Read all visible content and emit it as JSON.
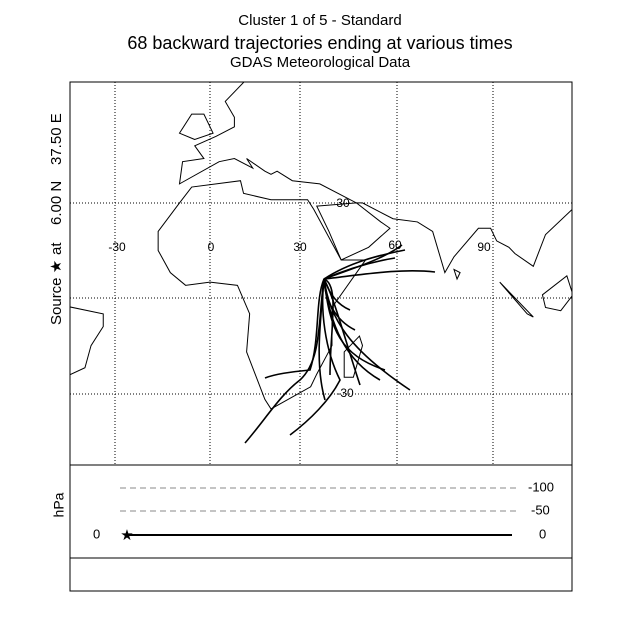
{
  "header": {
    "lines": [
      "Cluster 1 of 5 - Standard",
      "68 backward trajectories ending at various times",
      "GDAS Meteorological Data"
    ]
  },
  "source_label": {
    "parts": [
      "Source ★",
      "at",
      "6.00 N",
      "37.50 E"
    ]
  },
  "map": {
    "lon_labels": [
      "-30",
      "0",
      "30",
      "60",
      "90"
    ],
    "lat_labels": [
      "30",
      "-30"
    ]
  },
  "height_panel": {
    "unit": "hPa",
    "right_labels": [
      "-100",
      "-50",
      "0"
    ],
    "left_label": "0"
  }
}
